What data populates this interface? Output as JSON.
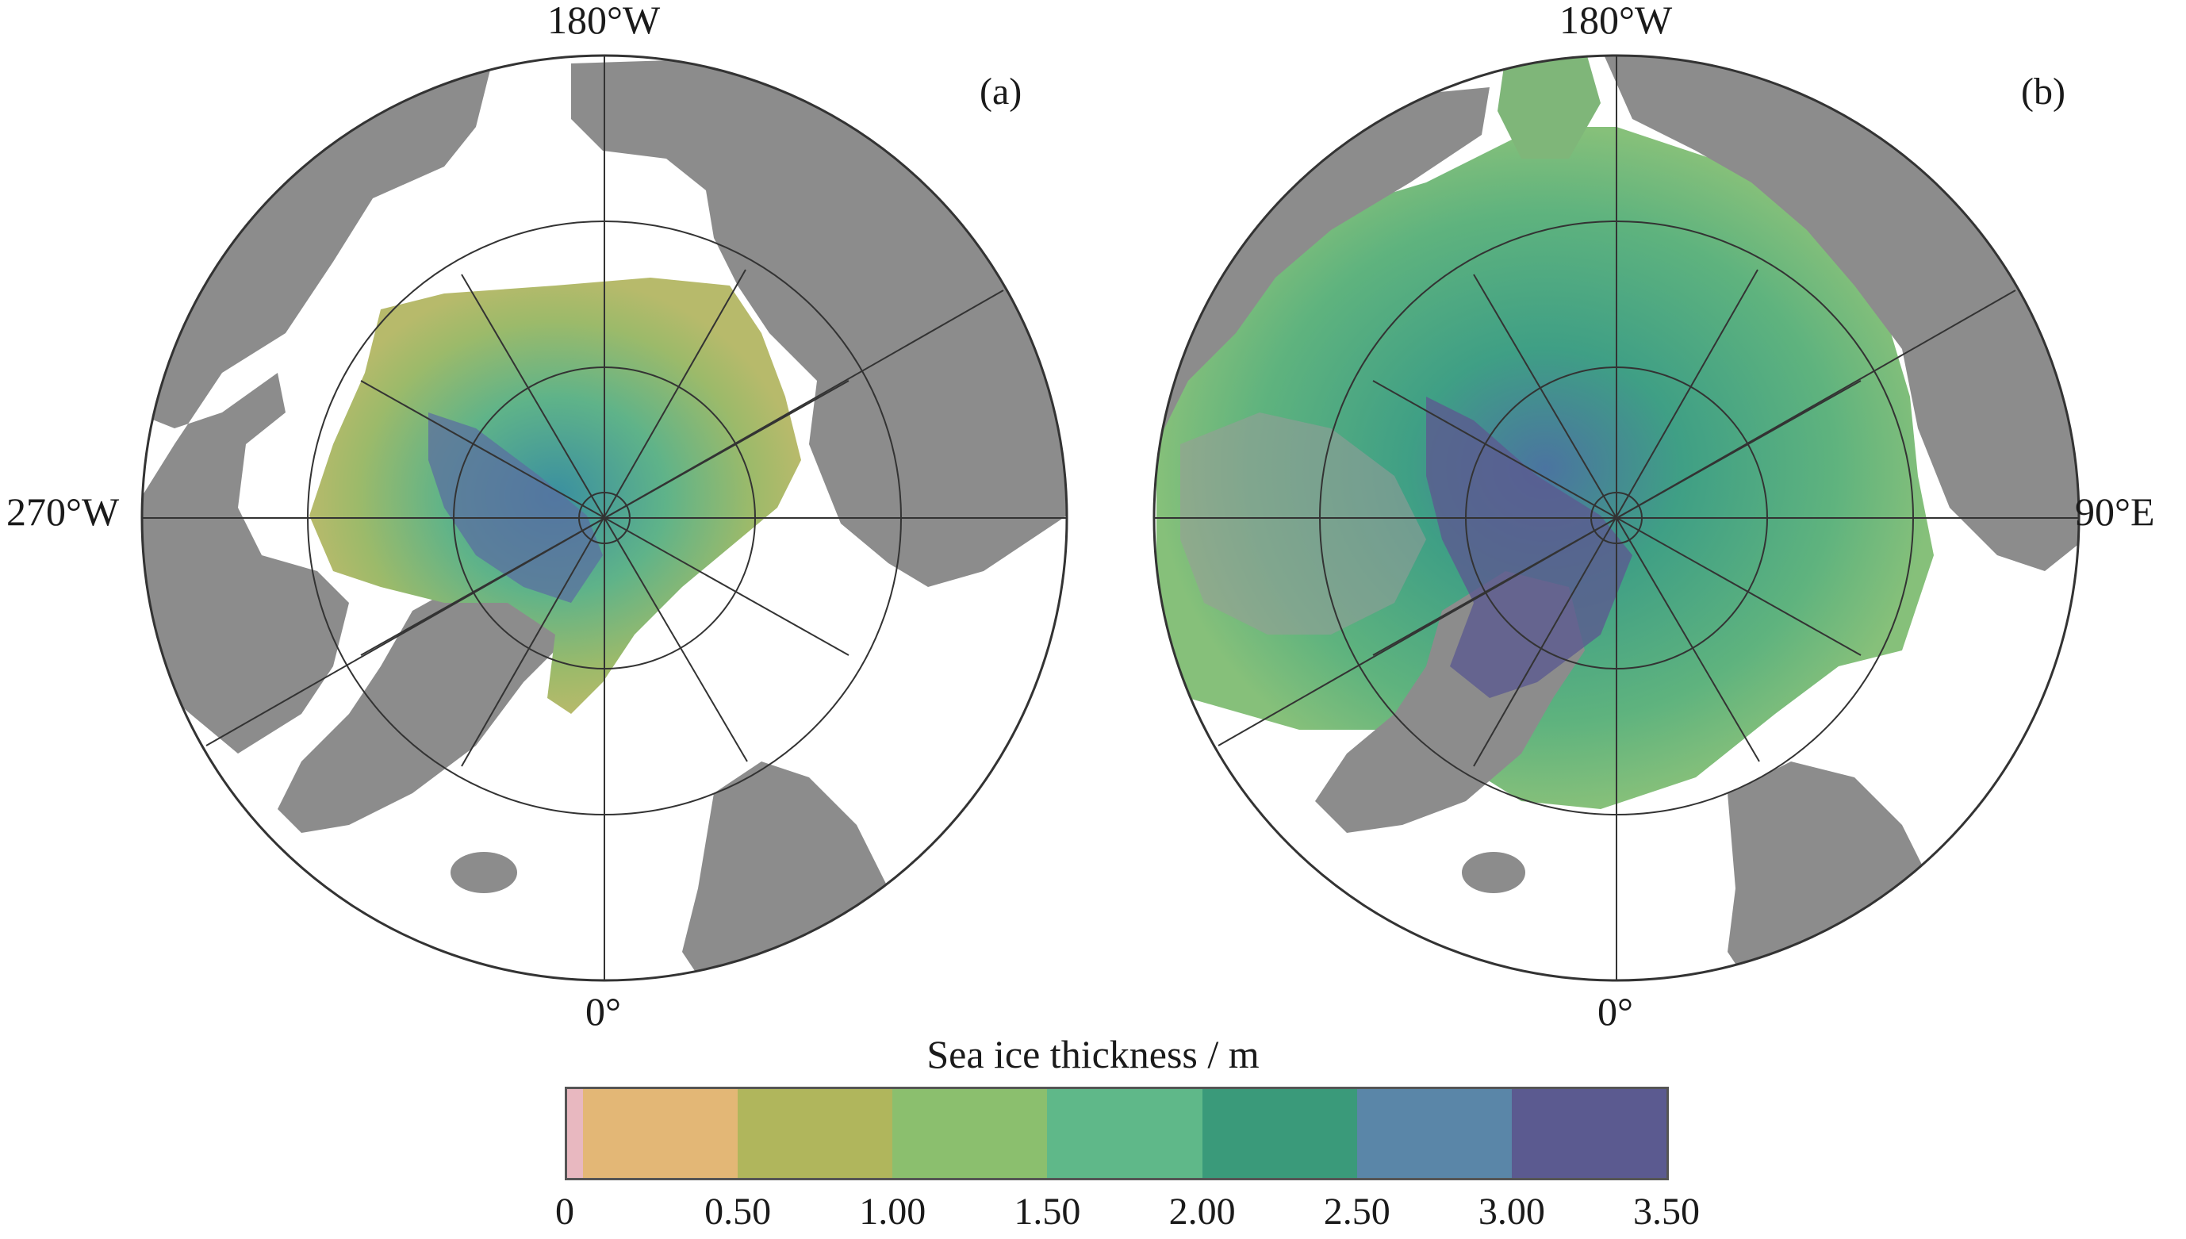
{
  "panels": [
    {
      "letter": "(a)",
      "labels": {
        "top": "180°W",
        "left": "270°W",
        "right": "",
        "bottom": "0°"
      }
    },
    {
      "letter": "(b)",
      "labels": {
        "top": "180°W",
        "left": "",
        "right": "90°E",
        "bottom": "0°"
      }
    }
  ],
  "legend": {
    "title": "Sea ice thickness / m",
    "ticks": [
      "0",
      "0.50",
      "1.00",
      "1.50",
      "2.00",
      "2.50",
      "3.00",
      "3.50"
    ],
    "colors": [
      "#e8b8c0",
      "#e3b776",
      "#b0b65c",
      "#8bbf6e",
      "#5fb889",
      "#3a9a7a",
      "#5a86a8",
      "#5b5a90"
    ]
  },
  "colors": {
    "land": "#8c8c8c",
    "ocean": "#ffffff",
    "grid": "#333333"
  }
}
